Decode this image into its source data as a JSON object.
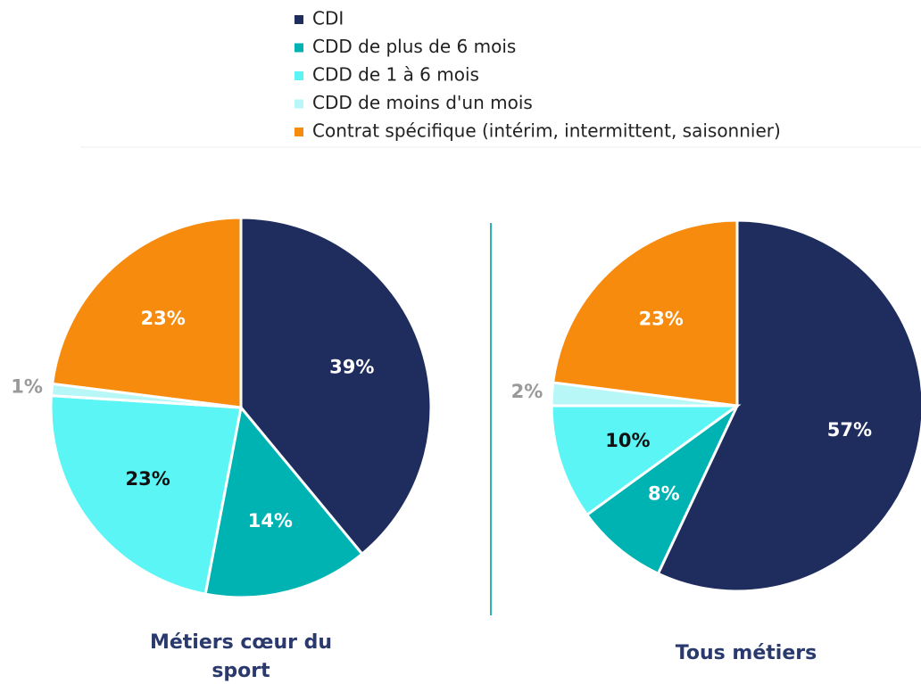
{
  "legend": {
    "categories": [
      "CDI",
      "CDD de plus de 6 mois",
      "CDD de 1 à 6 mois",
      "CDD de moins d'un mois",
      "Contrat spécifique (intérim, intermittent, saisonnier)"
    ],
    "colors": [
      "#1f2d5e",
      "#00b3b3",
      "#5cf5f5",
      "#b8f7f7",
      "#f68b0e"
    ],
    "label_colors": [
      "#ffffff",
      "#ffffff",
      "#111111",
      "#999999",
      "#ffffff"
    ]
  },
  "chart_data": [
    {
      "type": "pie",
      "title": "Métiers cœur du sport",
      "values": [
        39,
        14,
        23,
        1,
        23
      ],
      "value_labels": [
        "39%",
        "14%",
        "23%",
        "1%",
        "23%"
      ]
    },
    {
      "type": "pie",
      "title": "Tous métiers",
      "values": [
        57,
        8,
        10,
        2,
        23
      ],
      "value_labels": [
        "57%",
        "8%",
        "10%",
        "2%",
        "23%"
      ]
    }
  ]
}
